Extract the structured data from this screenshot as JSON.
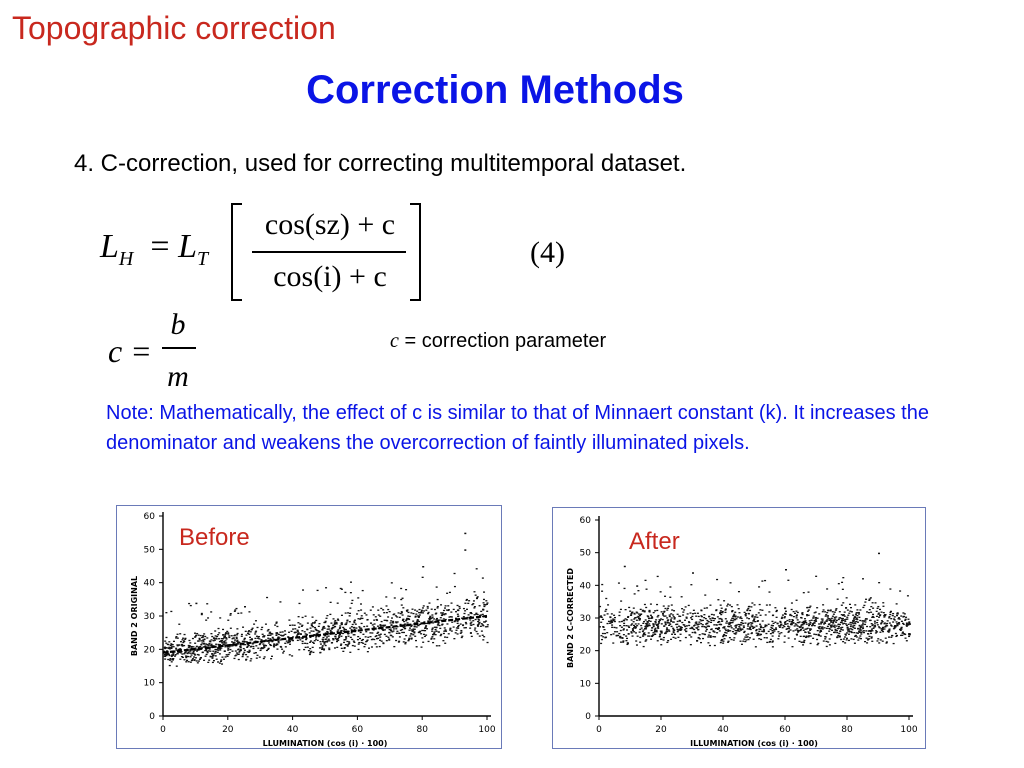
{
  "section_title": "Topographic correction",
  "title": "Correction Methods",
  "item": "4. C-correction, used for correcting multitemporal dataset.",
  "equation": {
    "lhs_var": "L",
    "lhs_sub": "H",
    "eq": "=",
    "rhs_var": "L",
    "rhs_sub": "T",
    "numerator": "cos(sz) + c",
    "denominator": "cos(i) + c",
    "number": "(4)"
  },
  "c_equation": {
    "lhs": "c =",
    "numerator": "b",
    "denominator": "m"
  },
  "c_definition": {
    "symbol": "c",
    "text": "= correction parameter"
  },
  "note": "Note: Mathematically, the effect of c is similar to that of Minnaert constant (k).  It increases the denominator and weakens the overcorrection of faintly illuminated pixels.",
  "chart_data": [
    {
      "type": "scatter",
      "panel_label": "Before",
      "ylabel": "BAND 2 ORIGINAL",
      "xlabel": "LLUMINATION   (cos (i) · 100)",
      "xlim": [
        0,
        100
      ],
      "ylim": [
        0,
        60
      ],
      "xticks": [
        0,
        20,
        40,
        60,
        80,
        100
      ],
      "yticks": [
        0,
        10,
        20,
        30,
        40,
        50,
        60
      ],
      "trend": {
        "x": [
          0,
          100
        ],
        "y": [
          19,
          30
        ]
      },
      "cloud": {
        "x_range": [
          0,
          100
        ],
        "y_at_x0": [
          15,
          24
        ],
        "y_at_x100": [
          23,
          37
        ]
      },
      "outliers": [
        {
          "x": 93,
          "y": 55
        },
        {
          "x": 93,
          "y": 50
        },
        {
          "x": 80,
          "y": 45
        },
        {
          "x": 10,
          "y": 34
        },
        {
          "x": 25,
          "y": 33
        }
      ]
    },
    {
      "type": "scatter",
      "panel_label": "After",
      "ylabel": "BAND 2 C-CORRECTED",
      "xlabel": "ILLUMINATION   (cos (i) · 100)",
      "xlim": [
        0,
        100
      ],
      "ylim": [
        0,
        60
      ],
      "xticks": [
        0,
        20,
        40,
        60,
        80,
        100
      ],
      "yticks": [
        0,
        10,
        20,
        30,
        40,
        50,
        60
      ],
      "cloud": {
        "x_range": [
          0,
          100
        ],
        "y_at_x0": [
          22,
          34
        ],
        "y_at_x100": [
          22,
          34
        ]
      },
      "outliers": [
        {
          "x": 90,
          "y": 50
        },
        {
          "x": 8,
          "y": 46
        },
        {
          "x": 30,
          "y": 44
        },
        {
          "x": 60,
          "y": 45
        },
        {
          "x": 12,
          "y": 40
        }
      ]
    }
  ]
}
